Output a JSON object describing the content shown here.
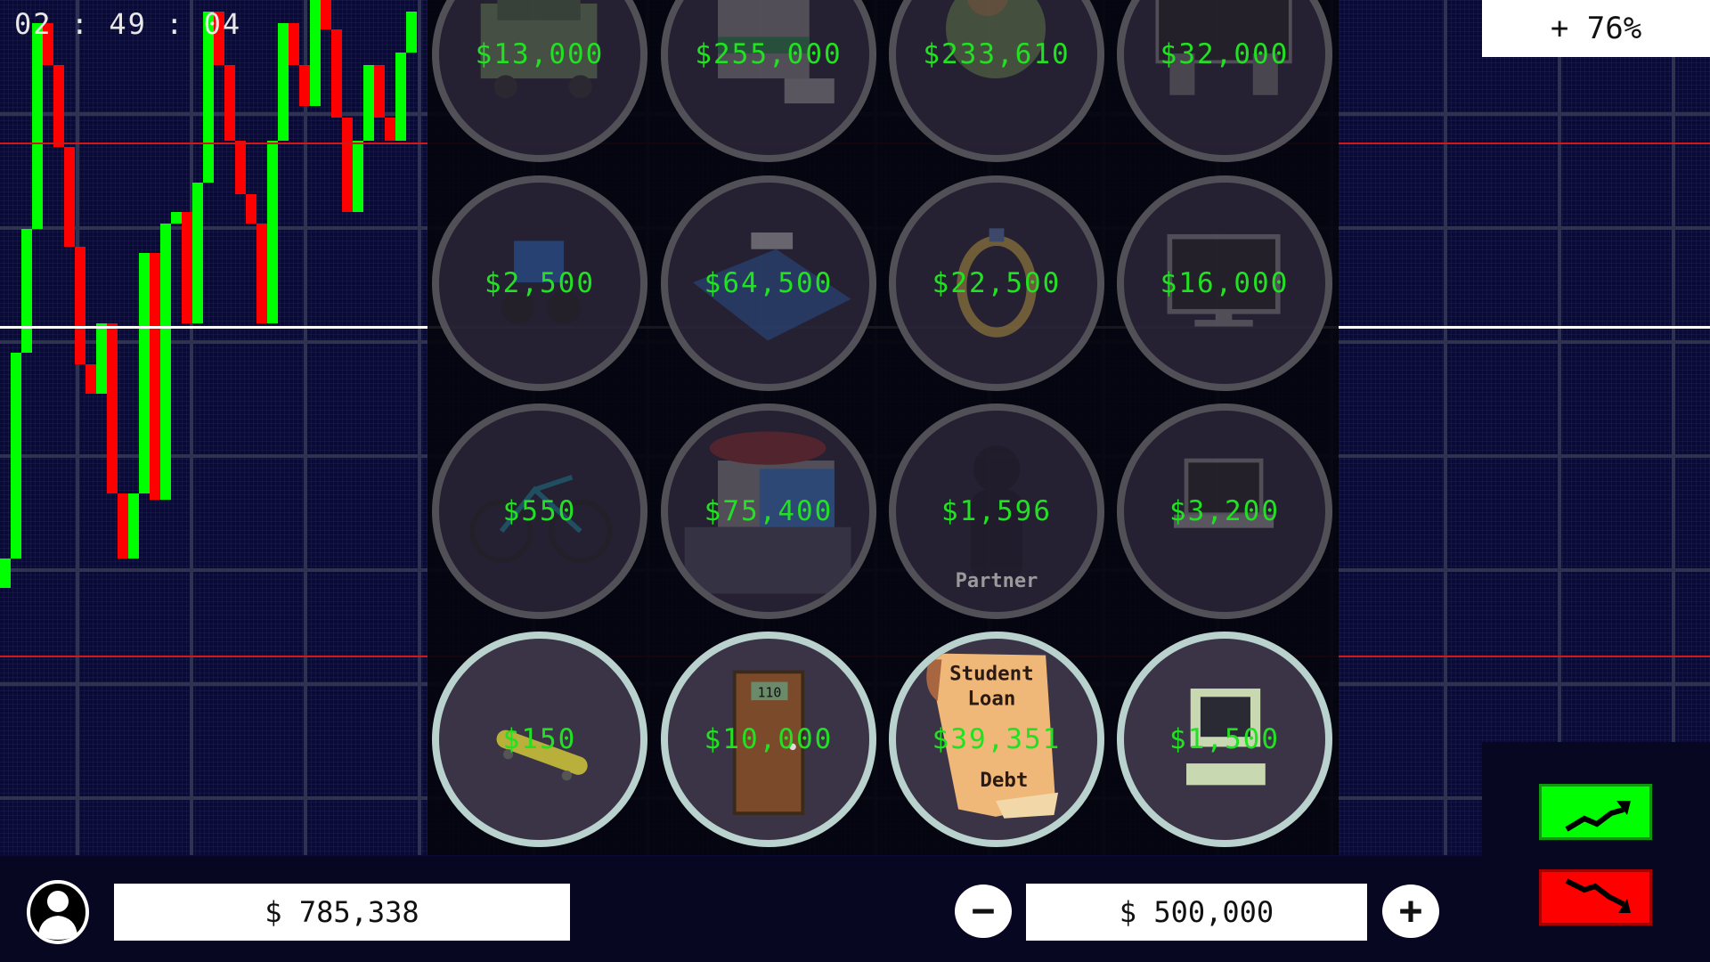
{
  "timer": "02 : 49 : 04",
  "change_percent": "+ 76%",
  "colors": {
    "up": "#00ff00",
    "down": "#ff0000",
    "price_text": "#22e022",
    "background": "#0a0a36"
  },
  "price_chart": {
    "type": "candlestick",
    "open_start": 0,
    "closes": [
      5,
      40,
      61,
      96,
      89,
      75,
      58,
      38,
      33,
      45,
      16,
      5,
      16,
      57,
      15,
      62,
      64,
      45,
      69,
      98,
      89,
      76,
      67,
      62,
      45,
      76,
      96,
      89,
      82,
      100,
      95,
      80,
      64,
      76,
      89,
      80,
      76,
      91,
      98
    ]
  },
  "shop": {
    "items": [
      {
        "icon": "car-icon",
        "price": "$13,000",
        "owned": false
      },
      {
        "icon": "building-icon",
        "price": "$255,000",
        "owned": false
      },
      {
        "icon": "planet-icon",
        "price": "$233,610",
        "owned": false
      },
      {
        "icon": "home-theater-icon",
        "price": "$32,000",
        "owned": false
      },
      {
        "icon": "motorbike-icon",
        "price": "$2,500",
        "owned": false
      },
      {
        "icon": "pool-icon",
        "price": "$64,500",
        "owned": false
      },
      {
        "icon": "ring-icon",
        "price": "$22,500",
        "owned": false
      },
      {
        "icon": "monitor-icon",
        "price": "$16,000",
        "owned": false
      },
      {
        "icon": "bicycle-icon",
        "price": "$550",
        "owned": false
      },
      {
        "icon": "house-icon",
        "price": "$75,400",
        "owned": false
      },
      {
        "icon": "partner-icon",
        "price": "$1,596",
        "label": "Partner",
        "owned": false
      },
      {
        "icon": "laptop-icon",
        "price": "$3,200",
        "owned": false
      },
      {
        "icon": "skateboard-icon",
        "price": "$150",
        "owned": true
      },
      {
        "icon": "door-icon",
        "price": "$10,000",
        "door_number": "110",
        "owned": true
      },
      {
        "icon": "scroll-icon",
        "price": "$39,351",
        "scroll_text": [
          "Student",
          "Loan",
          "Debt"
        ],
        "owned": true
      },
      {
        "icon": "computer-icon",
        "price": "$1,500",
        "owned": true
      }
    ]
  },
  "bottom": {
    "balance": "$ 785,338",
    "bet_amount": "$ 500,000",
    "minus": "−",
    "plus": "+"
  },
  "trade": {
    "up_icon": "trend-up-icon",
    "down_icon": "trend-down-icon"
  }
}
